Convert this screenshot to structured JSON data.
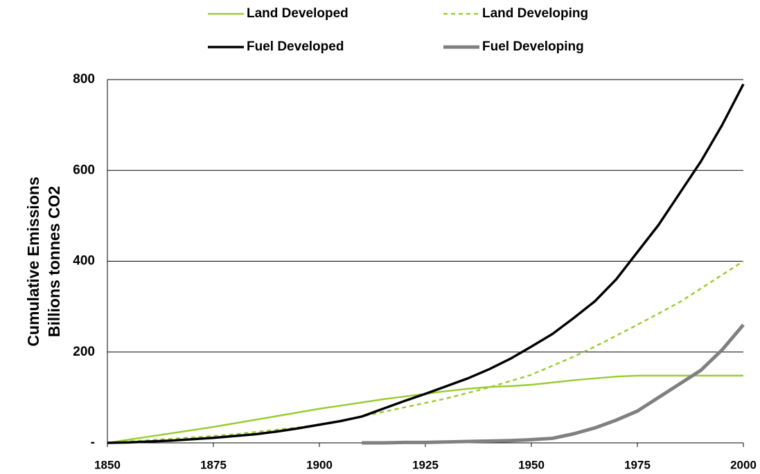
{
  "chart_data": {
    "type": "line",
    "ylabel": [
      "Cumulative Emissions",
      "Billions tonnes CO2"
    ],
    "x": [
      1850,
      1855,
      1860,
      1865,
      1870,
      1875,
      1880,
      1885,
      1890,
      1895,
      1900,
      1905,
      1910,
      1915,
      1920,
      1925,
      1930,
      1935,
      1940,
      1945,
      1950,
      1955,
      1960,
      1965,
      1970,
      1975,
      1980,
      1985,
      1990,
      1995,
      2000
    ],
    "series": [
      {
        "name": "Land Developed",
        "color": "#99cc33",
        "dash": false,
        "width": 2.5,
        "values": [
          0,
          7,
          14,
          21,
          28,
          35,
          43,
          51,
          59,
          67,
          75,
          82,
          89,
          96,
          102,
          108,
          114,
          119,
          123,
          125,
          128,
          133,
          138,
          142,
          146,
          148,
          148,
          148,
          148,
          148,
          148
        ]
      },
      {
        "name": "Land Developing",
        "color": "#99cc33",
        "dash": true,
        "width": 2.5,
        "values": [
          0,
          3,
          6,
          9,
          12,
          15,
          19,
          24,
          29,
          34,
          40,
          48,
          58,
          68,
          78,
          88,
          98,
          110,
          122,
          136,
          150,
          170,
          190,
          212,
          236,
          260,
          285,
          310,
          340,
          370,
          400
        ]
      },
      {
        "name": "Fuel Developed",
        "color": "#000000",
        "dash": false,
        "width": 3.5,
        "values": [
          0,
          1,
          3,
          5,
          8,
          11,
          15,
          19,
          25,
          32,
          40,
          48,
          58,
          75,
          92,
          108,
          125,
          142,
          162,
          185,
          212,
          240,
          275,
          312,
          360,
          420,
          480,
          550,
          620,
          700,
          790
        ]
      },
      {
        "name": "Fuel Developing",
        "color": "#808080",
        "dash": false,
        "width": 5,
        "values": [
          null,
          null,
          null,
          null,
          null,
          null,
          null,
          null,
          null,
          null,
          null,
          null,
          0,
          0,
          1,
          1,
          2,
          3,
          4,
          5,
          7,
          10,
          20,
          33,
          50,
          70,
          100,
          130,
          160,
          205,
          260
        ]
      }
    ],
    "xlim": [
      1850,
      2000
    ],
    "xticks": [
      1850,
      1875,
      1900,
      1925,
      1950,
      1975,
      2000
    ],
    "ylim": [
      0,
      800
    ],
    "yticks": [
      {
        "value": 0,
        "label": "-"
      },
      200,
      400,
      600,
      800
    ],
    "grid": true
  }
}
